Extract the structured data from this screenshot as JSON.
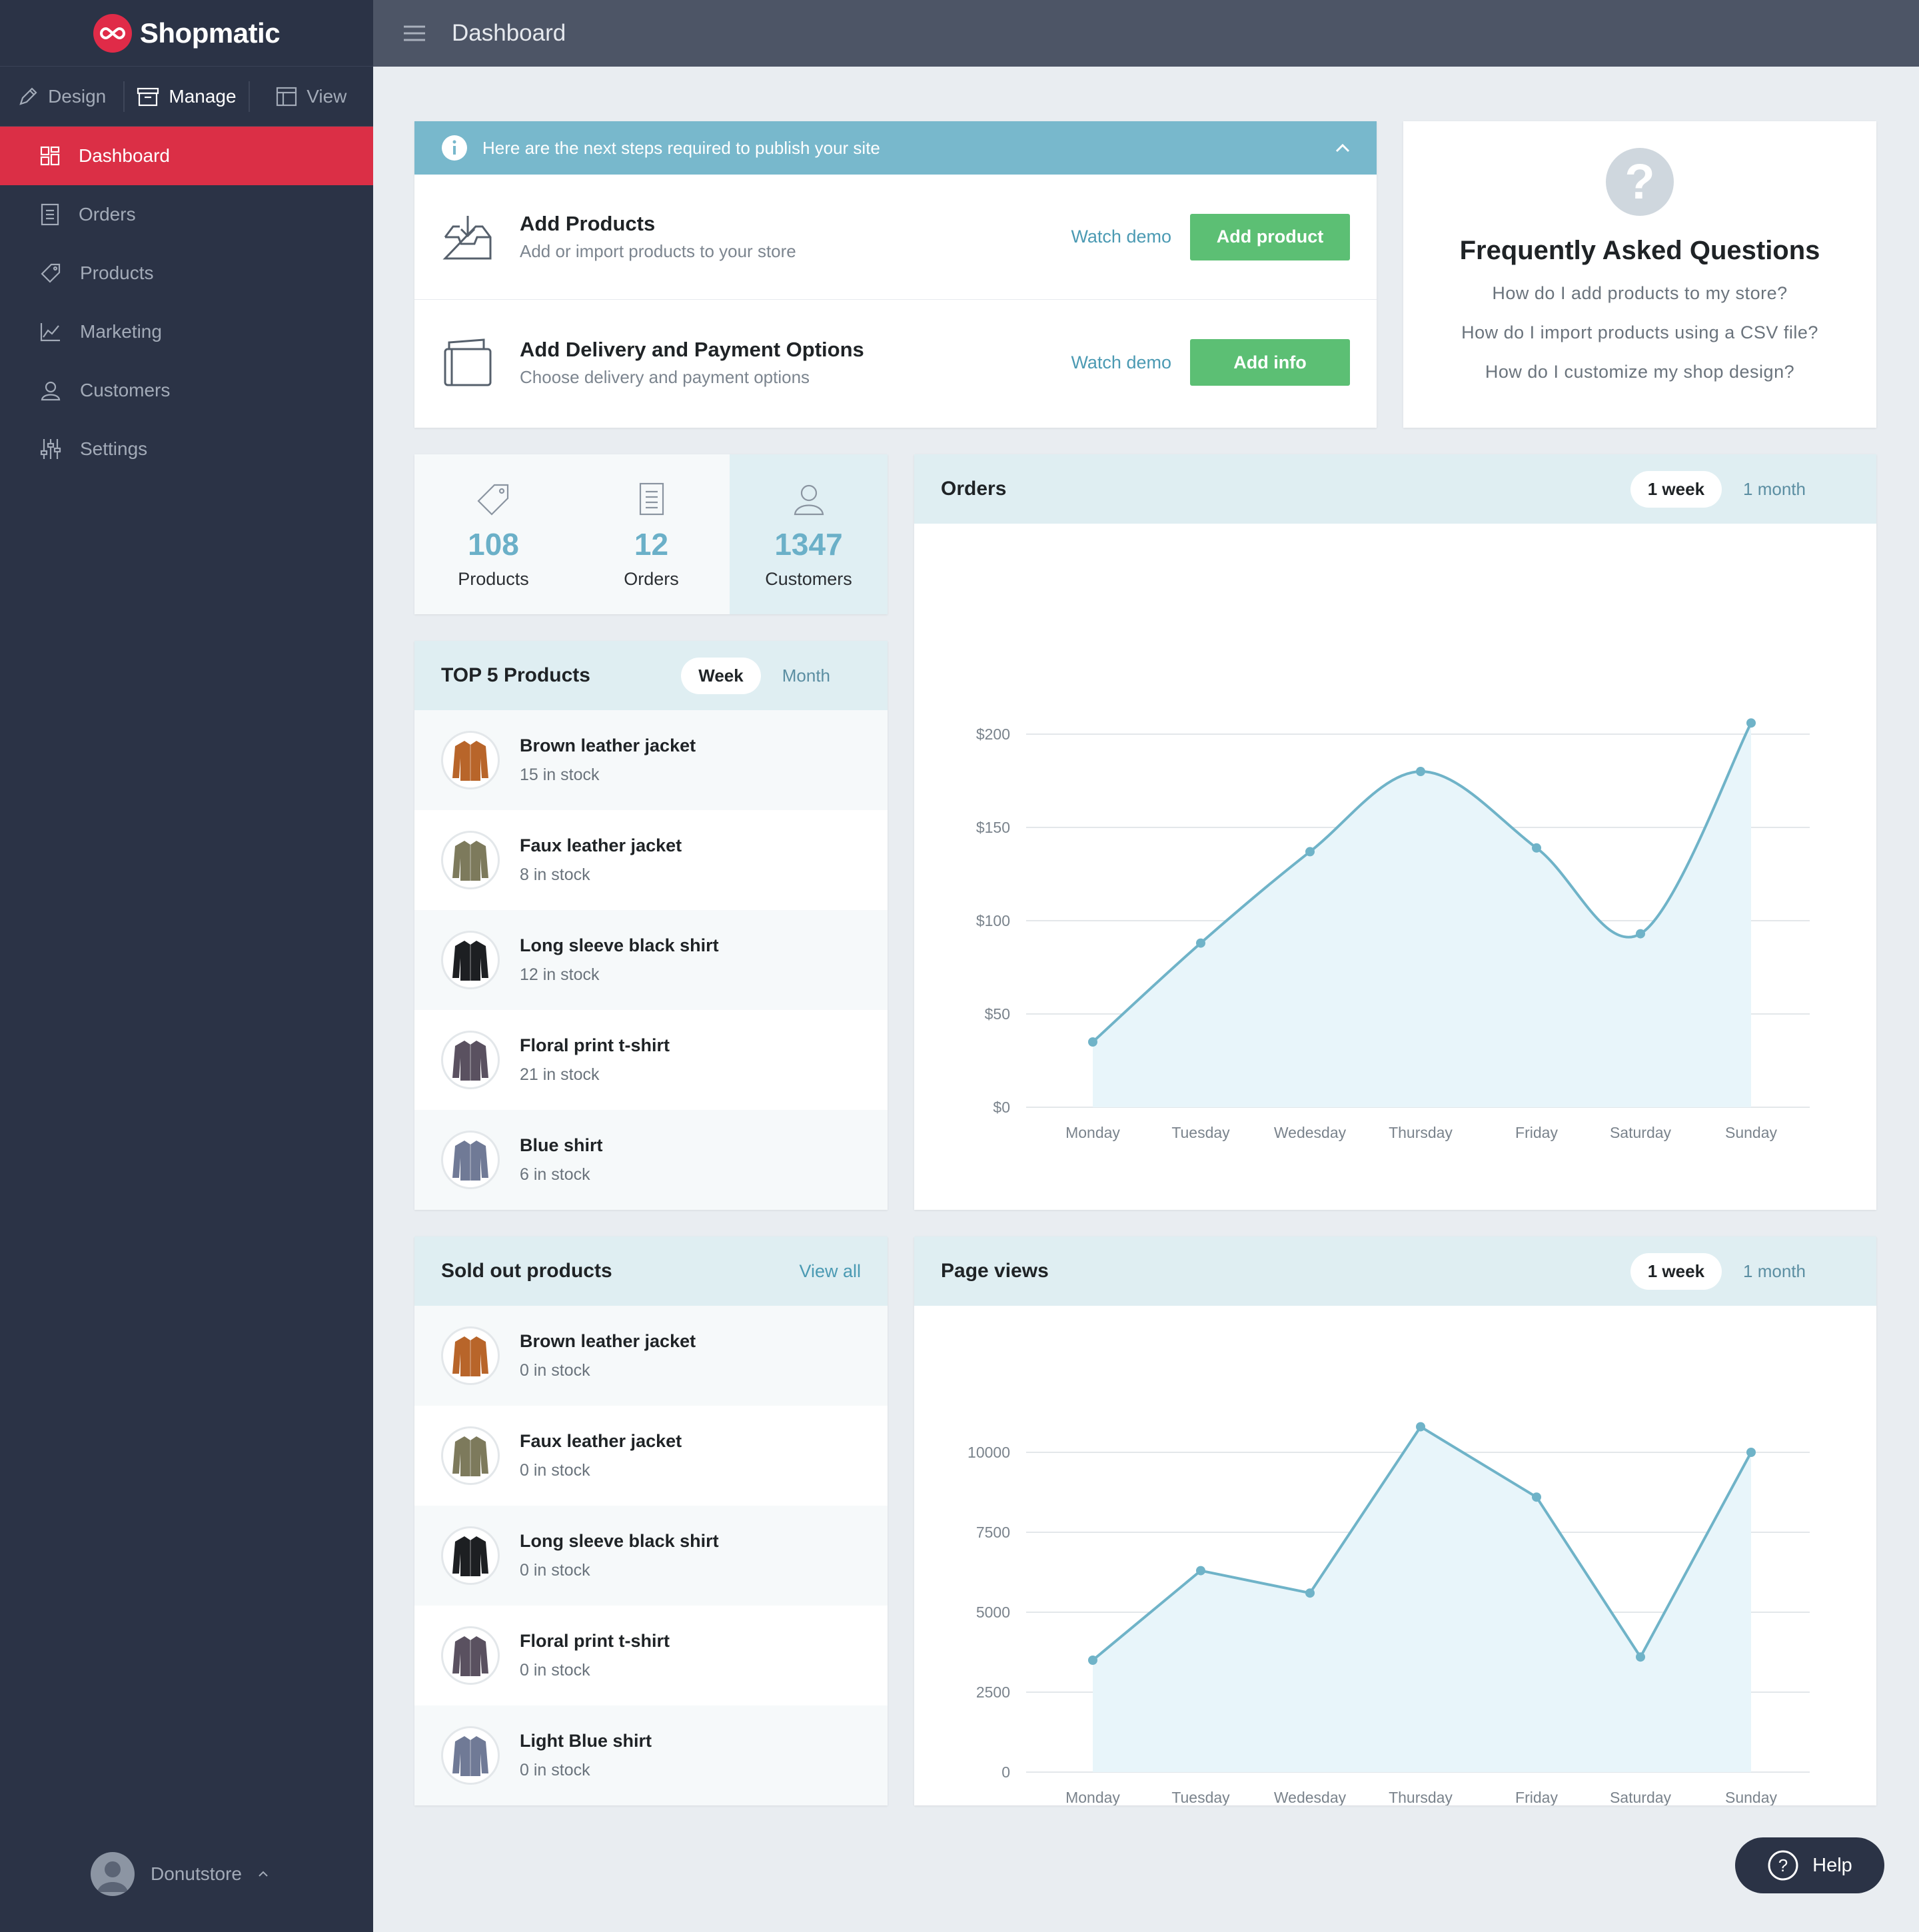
{
  "brand": {
    "name": "Shopmatic",
    "accent": "#db2f46"
  },
  "modes": [
    {
      "label": "Design"
    },
    {
      "label": "Manage"
    },
    {
      "label": "View"
    }
  ],
  "nav": [
    {
      "label": "Dashboard",
      "icon": "dashboard-icon"
    },
    {
      "label": "Orders",
      "icon": "orders-icon"
    },
    {
      "label": "Products",
      "icon": "tag-icon"
    },
    {
      "label": "Marketing",
      "icon": "chart-line-icon"
    },
    {
      "label": "Customers",
      "icon": "user-icon"
    },
    {
      "label": "Settings",
      "icon": "sliders-icon"
    }
  ],
  "user": {
    "name": "Donutstore"
  },
  "header": {
    "title": "Dashboard"
  },
  "steps": {
    "banner": "Here are the next steps required to publish your site",
    "items": [
      {
        "title": "Add Products",
        "subtitle": "Add or import products to your store",
        "watch": "Watch demo",
        "button": "Add product"
      },
      {
        "title": "Add Delivery and Payment Options",
        "subtitle": "Choose delivery and payment options",
        "watch": "Watch demo",
        "button": "Add info"
      }
    ]
  },
  "faq": {
    "title": "Frequently Asked Questions",
    "links": [
      "How do I add products to my store?",
      "How do I import products using a CSV file?",
      "How do I customize my shop design?"
    ]
  },
  "stats": [
    {
      "value": "108",
      "label": "Products"
    },
    {
      "value": "12",
      "label": "Orders"
    },
    {
      "value": "1347",
      "label": "Customers"
    }
  ],
  "top_products": {
    "title": "TOP 5 Products",
    "toggle": [
      "Week",
      "Month"
    ],
    "items": [
      {
        "name": "Brown leather jacket",
        "stock": "15 in stock",
        "color": "#b8652a"
      },
      {
        "name": "Faux leather jacket",
        "stock": "8 in stock",
        "color": "#7d7a5c"
      },
      {
        "name": "Long sleeve black shirt",
        "stock": "12 in stock",
        "color": "#1d1f22"
      },
      {
        "name": "Floral print t-shirt",
        "stock": "21 in stock",
        "color": "#5a5160"
      },
      {
        "name": "Blue shirt",
        "stock": "6 in stock",
        "color": "#707a96"
      }
    ]
  },
  "sold_out": {
    "title": "Sold out products",
    "view_all": "View all",
    "items": [
      {
        "name": "Brown leather jacket",
        "stock": "0 in stock",
        "color": "#b8652a"
      },
      {
        "name": "Faux leather jacket",
        "stock": "0 in stock",
        "color": "#7d7a5c"
      },
      {
        "name": "Long sleeve black shirt",
        "stock": "0 in stock",
        "color": "#1d1f22"
      },
      {
        "name": "Floral print t-shirt",
        "stock": "0 in stock",
        "color": "#5a5160"
      },
      {
        "name": "Light Blue shirt",
        "stock": "0 in stock",
        "color": "#707a96"
      }
    ]
  },
  "orders_chart": {
    "title": "Orders",
    "toggle": [
      "1 week",
      "1 month"
    ]
  },
  "views_chart": {
    "title": "Page views",
    "toggle": [
      "1 week",
      "1 month"
    ]
  },
  "help": {
    "label": "Help"
  },
  "chart_data": [
    {
      "type": "area",
      "title": "Orders",
      "x": [
        "Monday",
        "Tuesday",
        "Wedesday",
        "Thursday",
        "Friday",
        "Saturday",
        "Sunday"
      ],
      "values": [
        35,
        88,
        137,
        180,
        139,
        93,
        206
      ],
      "yticks": [
        "$0",
        "$50",
        "$100",
        "$150",
        "$200"
      ],
      "ylim": [
        0,
        200
      ],
      "smooth": true,
      "grid": true,
      "color": "#6fb3c8"
    },
    {
      "type": "area",
      "title": "Page views",
      "x": [
        "Monday",
        "Tuesday",
        "Wedesday",
        "Thursday",
        "Friday",
        "Saturday",
        "Sunday"
      ],
      "values": [
        3500,
        6300,
        5600,
        10800,
        8600,
        3600,
        10000
      ],
      "yticks": [
        "0",
        "2500",
        "5000",
        "7500",
        "10000"
      ],
      "ylim": [
        0,
        10000
      ],
      "smooth": false,
      "grid": true,
      "color": "#6fb3c8"
    }
  ]
}
